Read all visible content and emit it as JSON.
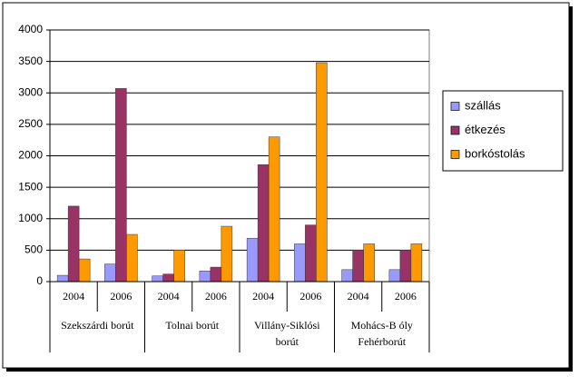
{
  "chart_data": {
    "type": "bar",
    "categories": [
      "2004",
      "2006",
      "2004",
      "2006",
      "2004",
      "2006",
      "2004",
      "2006"
    ],
    "groups": [
      "Szekszárdi borút",
      "Tolnai borút",
      "Villány-Siklósi borút",
      "Mohács-B óly Fehérborút"
    ],
    "series": [
      {
        "name": "szállás",
        "color": "#9999ff",
        "values": [
          100,
          280,
          90,
          170,
          690,
          600,
          190,
          190
        ]
      },
      {
        "name": "étkezés",
        "color": "#993366",
        "values": [
          1200,
          3070,
          120,
          230,
          1860,
          900,
          500,
          500
        ]
      },
      {
        "name": "borkóstolás",
        "color": "#ff9900",
        "values": [
          360,
          750,
          500,
          880,
          2300,
          3480,
          600,
          600
        ]
      }
    ],
    "ylim": [
      0,
      4000
    ],
    "yticks": [
      0,
      500,
      1000,
      1500,
      2000,
      2500,
      3000,
      3500,
      4000
    ],
    "grid": true,
    "legend": "right"
  }
}
